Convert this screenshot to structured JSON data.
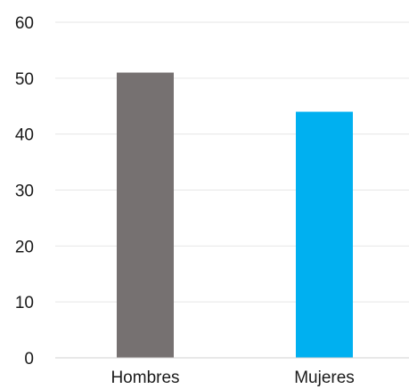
{
  "chart_data": {
    "type": "bar",
    "categories": [
      "Hombres",
      "Mujeres"
    ],
    "values": [
      51,
      44
    ],
    "bar_colors": [
      "#767171",
      "#00B0F0"
    ],
    "ylim": [
      0,
      60
    ],
    "yticks": [
      0,
      10,
      20,
      30,
      40,
      50,
      60
    ],
    "grid": true,
    "title": "",
    "xlabel": "",
    "ylabel": ""
  }
}
